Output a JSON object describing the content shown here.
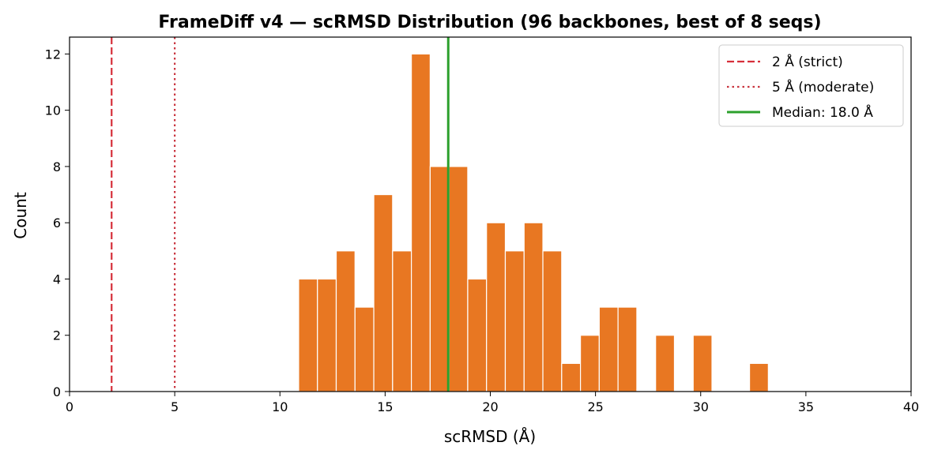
{
  "chart_data": {
    "type": "bar",
    "title": "FrameDiff v4 — scRMSD Distribution (96 backbones, best of 8 seqs)",
    "xlabel": "scRMSD (Å)",
    "ylabel": "Count",
    "xlim": [
      0,
      40
    ],
    "ylim": [
      0,
      12.6
    ],
    "xticks": [
      0,
      5,
      10,
      15,
      20,
      25,
      30,
      35,
      40
    ],
    "yticks": [
      0,
      2,
      4,
      6,
      8,
      10,
      12
    ],
    "grid": false,
    "legend_placement": "top-right",
    "bins": {
      "start": 10.89,
      "width": 0.893,
      "counts": [
        4,
        4,
        5,
        3,
        7,
        5,
        12,
        8,
        8,
        4,
        6,
        5,
        6,
        5,
        1,
        2,
        3,
        3,
        0,
        2,
        0,
        2,
        0,
        0,
        1
      ]
    },
    "bar_color": "#e87722",
    "reference_lines": [
      {
        "label": "2 Å (strict)",
        "x": 2,
        "style": "dashed",
        "color": "#d62f3a"
      },
      {
        "label": "5 Å (moderate)",
        "x": 5,
        "style": "dotted",
        "color": "#c9343f"
      },
      {
        "label": "Median: 18.0 Å",
        "x": 18.0,
        "style": "solid",
        "color": "#2ca02c"
      }
    ]
  }
}
